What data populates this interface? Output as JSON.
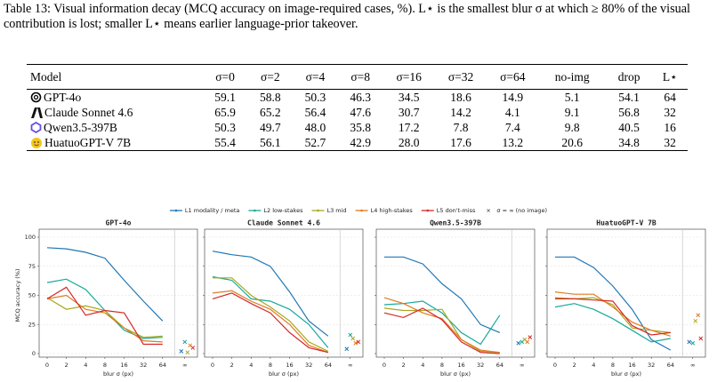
{
  "caption": "Table 13: Visual information decay (MCQ accuracy on image-required cases, %). L⋆ is the smallest blur σ at which ≥ 80% of the visual contribution is lost; smaller L⋆ means earlier language-prior takeover.",
  "table": {
    "columns": [
      "Model",
      "σ=0",
      "σ=2",
      "σ=4",
      "σ=8",
      "σ=16",
      "σ=32",
      "σ=64",
      "no-img",
      "drop",
      "L⋆"
    ],
    "rows": [
      [
        "GPT-4o",
        "59.1",
        "58.8",
        "50.3",
        "46.3",
        "34.5",
        "18.6",
        "14.9",
        "5.1",
        "54.1",
        "64"
      ],
      [
        "Claude Sonnet 4.6",
        "65.9",
        "65.2",
        "56.4",
        "47.6",
        "30.7",
        "14.2",
        "4.1",
        "9.1",
        "56.8",
        "32"
      ],
      [
        "Qwen3.5-397B",
        "50.3",
        "49.7",
        "48.0",
        "35.8",
        "17.2",
        "7.8",
        "7.4",
        "9.8",
        "40.5",
        "16"
      ],
      [
        "HuatuoGPT-V 7B",
        "55.4",
        "56.1",
        "52.7",
        "42.9",
        "28.0",
        "17.6",
        "13.2",
        "20.6",
        "34.8",
        "32"
      ]
    ]
  },
  "figure": {
    "legend": [
      {
        "name": "L1 modality / meta",
        "color": "#1f77b4"
      },
      {
        "name": "L2 low-stakes",
        "color": "#17a89a"
      },
      {
        "name": "L3 mid",
        "color": "#a8a81e"
      },
      {
        "name": "L4 high-stakes",
        "color": "#e07b20"
      },
      {
        "name": "L5 don't-miss",
        "color": "#d62728"
      }
    ],
    "no_image_label": "σ = ∞ (no image)",
    "xticks": [
      "0",
      "2",
      "4",
      "8",
      "16",
      "32",
      "64",
      "∞"
    ],
    "xlabel": "blur σ (px)",
    "ylabel": "MCQ accuracy (%)",
    "ylim": [
      0,
      100
    ],
    "yticks": [
      0,
      25,
      50,
      75,
      100
    ],
    "grid": true
  },
  "chart_data": [
    {
      "type": "line",
      "title": "GPT-4o",
      "title_color": "#2e9a3a",
      "series": [
        {
          "values": [
            91,
            90,
            87,
            82,
            63,
            45,
            28
          ],
          "no_image": 2
        },
        {
          "values": [
            61,
            64,
            55,
            37,
            20,
            13,
            14
          ],
          "no_image": 10
        },
        {
          "values": [
            48,
            38,
            41,
            37,
            22,
            14,
            15
          ],
          "no_image": 1
        },
        {
          "values": [
            47,
            50,
            38,
            35,
            22,
            11,
            10
          ],
          "no_image": 7
        },
        {
          "values": [
            47,
            57,
            33,
            37,
            35,
            8,
            8
          ],
          "no_image": 5
        }
      ]
    },
    {
      "type": "line",
      "title": "Claude Sonnet 4.6",
      "title_color": "#e0703a",
      "series": [
        {
          "values": [
            88,
            85,
            83,
            75,
            53,
            28,
            15
          ],
          "no_image": 4
        },
        {
          "values": [
            66,
            63,
            47,
            45,
            38,
            25,
            5
          ],
          "no_image": 16
        },
        {
          "values": [
            65,
            65,
            50,
            40,
            28,
            10,
            2
          ],
          "no_image": 13
        },
        {
          "values": [
            52,
            54,
            45,
            38,
            25,
            7,
            1
          ],
          "no_image": 9
        },
        {
          "values": [
            47,
            52,
            43,
            35,
            18,
            5,
            1
          ],
          "no_image": 10
        }
      ]
    },
    {
      "type": "line",
      "title": "Qwen3.5-397B",
      "title_color": "#4a5de0",
      "series": [
        {
          "values": [
            83,
            83,
            77,
            60,
            47,
            25,
            18
          ],
          "no_image": 9
        },
        {
          "values": [
            42,
            43,
            45,
            35,
            18,
            8,
            33
          ],
          "no_image": 10
        },
        {
          "values": [
            39,
            37,
            37,
            38,
            12,
            2,
            1
          ],
          "no_image": 12
        },
        {
          "values": [
            48,
            43,
            35,
            30,
            12,
            3,
            1
          ],
          "no_image": 10
        },
        {
          "values": [
            35,
            31,
            39,
            29,
            10,
            1,
            0
          ],
          "no_image": 14
        }
      ]
    },
    {
      "type": "line",
      "title": "HuatuoGPT-V 7B",
      "title_color": "#e0303a",
      "series": [
        {
          "values": [
            83,
            83,
            74,
            58,
            38,
            12,
            3
          ],
          "no_image": 10
        },
        {
          "values": [
            40,
            43,
            38,
            30,
            20,
            10,
            13
          ],
          "no_image": 9
        },
        {
          "values": [
            48,
            47,
            48,
            42,
            22,
            20,
            18
          ],
          "no_image": 28
        },
        {
          "values": [
            53,
            51,
            51,
            40,
            27,
            20,
            15
          ],
          "no_image": 33
        },
        {
          "values": [
            47,
            47,
            46,
            45,
            24,
            16,
            18
          ],
          "no_image": 13
        }
      ]
    }
  ]
}
